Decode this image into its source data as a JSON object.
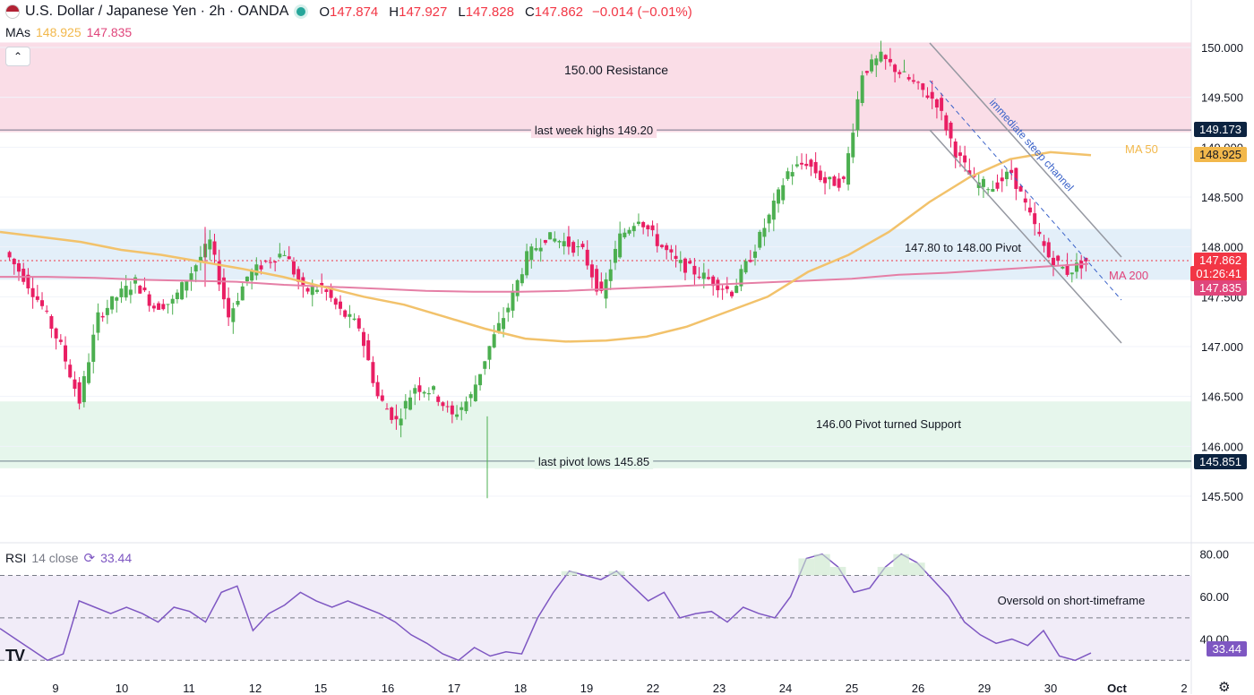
{
  "header": {
    "symbol": "U.S. Dollar / Japanese Yen · 2h · OANDA",
    "open_label": "O",
    "open": "147.874",
    "high_label": "H",
    "high": "147.927",
    "low_label": "L",
    "low": "147.828",
    "close_label": "C",
    "close": "147.862",
    "change": "−0.014 (−0.01%)",
    "mas_label": "MAs",
    "ma50_value": "148.925",
    "ma200_value": "147.835"
  },
  "rsi_header": {
    "label": "RSI",
    "params": "14 close",
    "value": "33.44"
  },
  "price_tags": {
    "resistance_line": "149.173",
    "ma50": "148.925",
    "last_price": "147.862",
    "countdown": "01:26:41",
    "ma200": "147.835",
    "support_line": "145.851",
    "rsi": "33.44"
  },
  "colors": {
    "up": "#26a69a",
    "down": "#f23645",
    "up_candle": "#4caf50",
    "down_candle": "#e91e63",
    "ma50": "#f2c26b",
    "ma200": "#e57fa6",
    "rsi": "#7e57c2",
    "resistance_zone": "#fadde7",
    "pivot_zone": "#e3eff9",
    "support_zone": "#e6f6ec"
  },
  "chart_data": [
    {
      "type": "candlestick",
      "yaxis_ticks": [
        "150.000",
        "149.500",
        "149.000",
        "148.500",
        "148.000",
        "147.500",
        "147.000",
        "146.500",
        "146.000",
        "145.500"
      ],
      "ylim": [
        145.3,
        150.1
      ],
      "x_ticks": [
        "9",
        "10",
        "11",
        "12",
        "15",
        "16",
        "17",
        "18",
        "19",
        "22",
        "23",
        "24",
        "25",
        "26",
        "29",
        "30",
        "Oct",
        "2"
      ],
      "zones": [
        {
          "label": "150.00 Resistance",
          "from": 149.15,
          "to": 150.05
        },
        {
          "label": "147.80 to 148.00 Pivot",
          "from": 147.67,
          "to": 148.18
        },
        {
          "label": "146.00 Pivot turned Support",
          "from": 145.78,
          "to": 146.45
        }
      ],
      "levels": [
        {
          "label": "last week highs 149.20",
          "value": 149.173
        },
        {
          "label": "last pivot lows 145.85",
          "value": 145.851
        }
      ],
      "annotations": [
        "immediate steep channel",
        "MA 50",
        "MA 200"
      ],
      "ma50": [
        148.15,
        148.1,
        148.05,
        147.97,
        147.92,
        147.85,
        147.78,
        147.7,
        147.6,
        147.5,
        147.42,
        147.3,
        147.18,
        147.08,
        147.05,
        147.06,
        147.1,
        147.2,
        147.35,
        147.5,
        147.75,
        147.92,
        148.15,
        148.45,
        148.7,
        148.88,
        148.95,
        148.92
      ],
      "ma200": [
        147.7,
        147.7,
        147.69,
        147.67,
        147.66,
        147.65,
        147.62,
        147.6,
        147.58,
        147.56,
        147.55,
        147.55,
        147.56,
        147.58,
        147.6,
        147.62,
        147.64,
        147.66,
        147.68,
        147.72,
        147.74,
        147.77,
        147.8,
        147.83
      ],
      "close_path": [
        147.95,
        147.7,
        147.4,
        147.0,
        146.45,
        147.3,
        147.5,
        147.65,
        147.4,
        147.45,
        147.75,
        148.05,
        147.3,
        147.7,
        147.85,
        147.95,
        147.55,
        147.6,
        147.35,
        147.2,
        146.5,
        146.25,
        146.6,
        146.55,
        146.3,
        146.5,
        147.0,
        147.4,
        147.9,
        148.1,
        148.05,
        147.95,
        147.5,
        148.1,
        148.3,
        148.05,
        147.85,
        147.75,
        147.65,
        147.55,
        147.9,
        148.3,
        148.75,
        148.85,
        148.65,
        148.65,
        149.75,
        149.9,
        149.75,
        149.6,
        149.45,
        148.95,
        148.65,
        148.6,
        148.75,
        148.3,
        147.9,
        147.75,
        147.86
      ],
      "rsi": [
        45,
        40,
        35,
        30,
        33,
        58,
        55,
        52,
        55,
        52,
        48,
        55,
        53,
        48,
        62,
        65,
        44,
        52,
        56,
        62,
        58,
        55,
        58,
        55,
        52,
        48,
        42,
        38,
        33,
        30,
        36,
        32,
        34,
        33,
        50,
        62,
        72,
        70,
        68,
        72,
        65,
        58,
        62,
        50,
        52,
        53,
        48,
        55,
        52,
        50,
        60,
        78,
        80,
        74,
        62,
        64,
        74,
        80,
        76,
        68,
        60,
        48,
        42,
        38,
        40,
        37,
        44,
        32,
        30,
        33.44
      ],
      "rsi_levels": [
        80,
        60,
        40
      ],
      "rsi_bands": [
        70,
        50,
        30
      ],
      "rsi_annotation": "Oversold on short-timeframe",
      "rsi_ylim": [
        28,
        82
      ]
    }
  ]
}
